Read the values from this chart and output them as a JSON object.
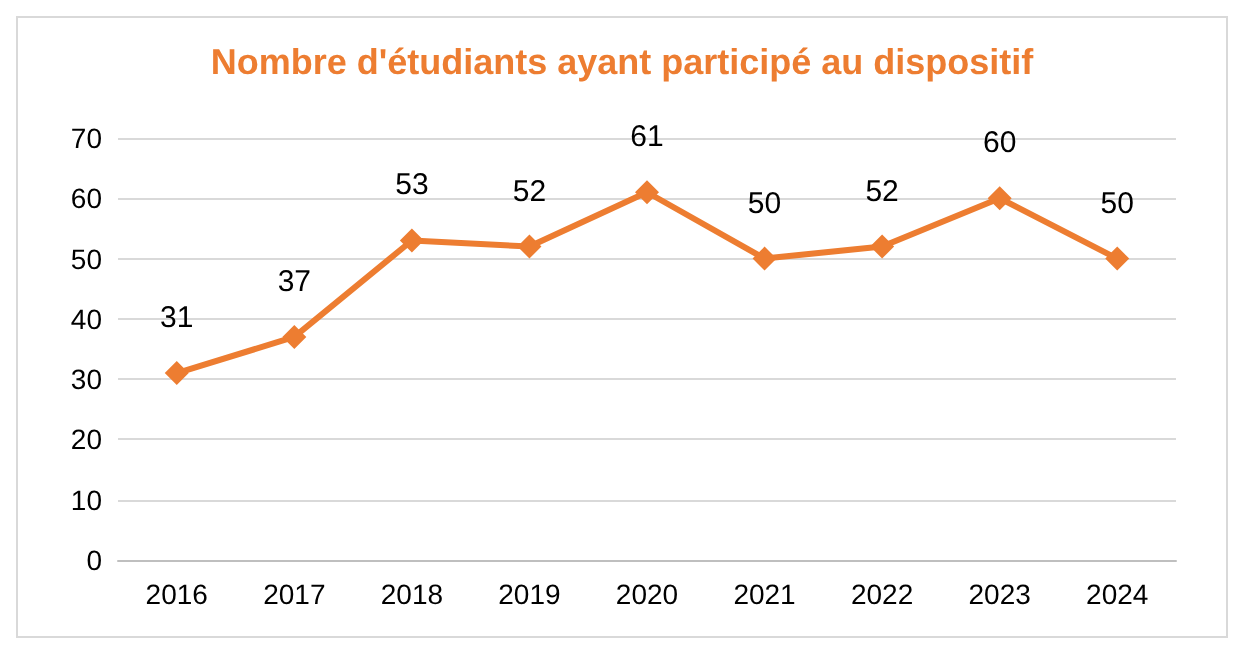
{
  "chart_data": {
    "type": "line",
    "title": "Nombre d'étudiants ayant participé au dispositif",
    "categories": [
      "2016",
      "2017",
      "2018",
      "2019",
      "2020",
      "2021",
      "2022",
      "2023",
      "2024"
    ],
    "series": [
      {
        "color": "#ed7d31",
        "values": [
          31,
          37,
          53,
          52,
          61,
          50,
          52,
          60,
          50
        ]
      }
    ],
    "ylim": [
      0,
      70
    ],
    "yticks": [
      0,
      10,
      20,
      30,
      40,
      50,
      60,
      70
    ],
    "grid": "y",
    "marker": "diamond",
    "line_style": "solid",
    "data_labels": true
  }
}
